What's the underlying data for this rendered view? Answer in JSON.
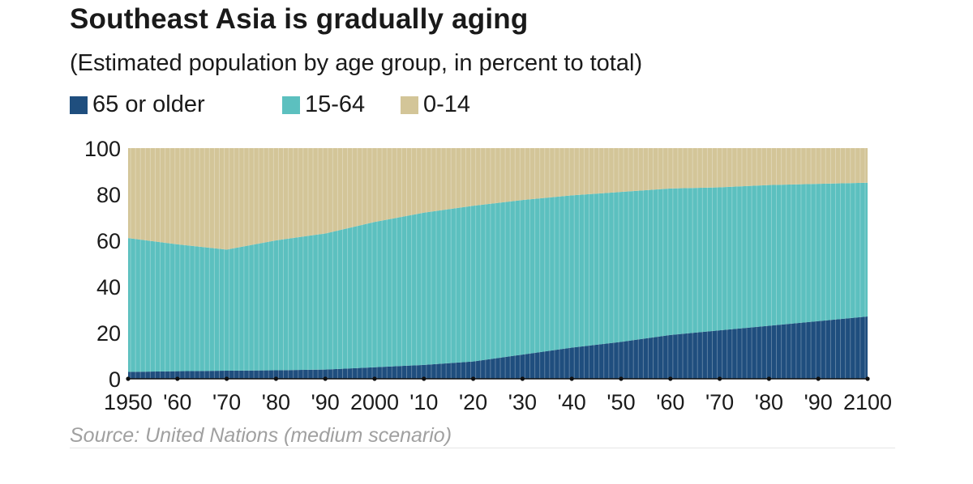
{
  "title": "Southeast Asia is gradually aging",
  "subtitle": "(Estimated population by age group, in percent to total)",
  "legend": [
    {
      "label": "65 or older",
      "color": "#1f4e7e"
    },
    {
      "label": "15-64",
      "color": "#5cc0bf"
    },
    {
      "label": "0-14",
      "color": "#d3c598"
    }
  ],
  "source": "Source: United Nations (medium scenario)",
  "chart_data": {
    "type": "area",
    "stacked": true,
    "x": [
      1950,
      1960,
      1970,
      1980,
      1990,
      2000,
      2010,
      2020,
      2030,
      2040,
      2050,
      2060,
      2070,
      2080,
      2090,
      2100
    ],
    "x_tick_labels": [
      "1950",
      "'60",
      "'70",
      "'80",
      "'90",
      "2000",
      "'10",
      "'20",
      "'30",
      "'40",
      "'50",
      "'60",
      "'70",
      "'80",
      "'90",
      "2100"
    ],
    "ylim": [
      0,
      100
    ],
    "y_ticks": [
      0,
      20,
      40,
      60,
      80,
      100
    ],
    "series": [
      {
        "name": "65 or older",
        "color": "#1f4e7e",
        "values": [
          3,
          3.3,
          3.5,
          3.7,
          4,
          5,
          6,
          7.5,
          10.5,
          13.5,
          16,
          19,
          21,
          23,
          25,
          27
        ]
      },
      {
        "name": "15-64",
        "color": "#5cc0bf",
        "values": [
          58,
          55,
          52.5,
          56.3,
          59,
          63,
          66,
          67.5,
          67,
          66,
          65,
          63.5,
          62,
          61,
          59.5,
          58
        ]
      },
      {
        "name": "0-14",
        "color": "#d3c598",
        "values": [
          39,
          41.7,
          44,
          40,
          37,
          32,
          28,
          25,
          22.5,
          20.5,
          19,
          17.5,
          17,
          16,
          15.5,
          15
        ]
      }
    ]
  }
}
